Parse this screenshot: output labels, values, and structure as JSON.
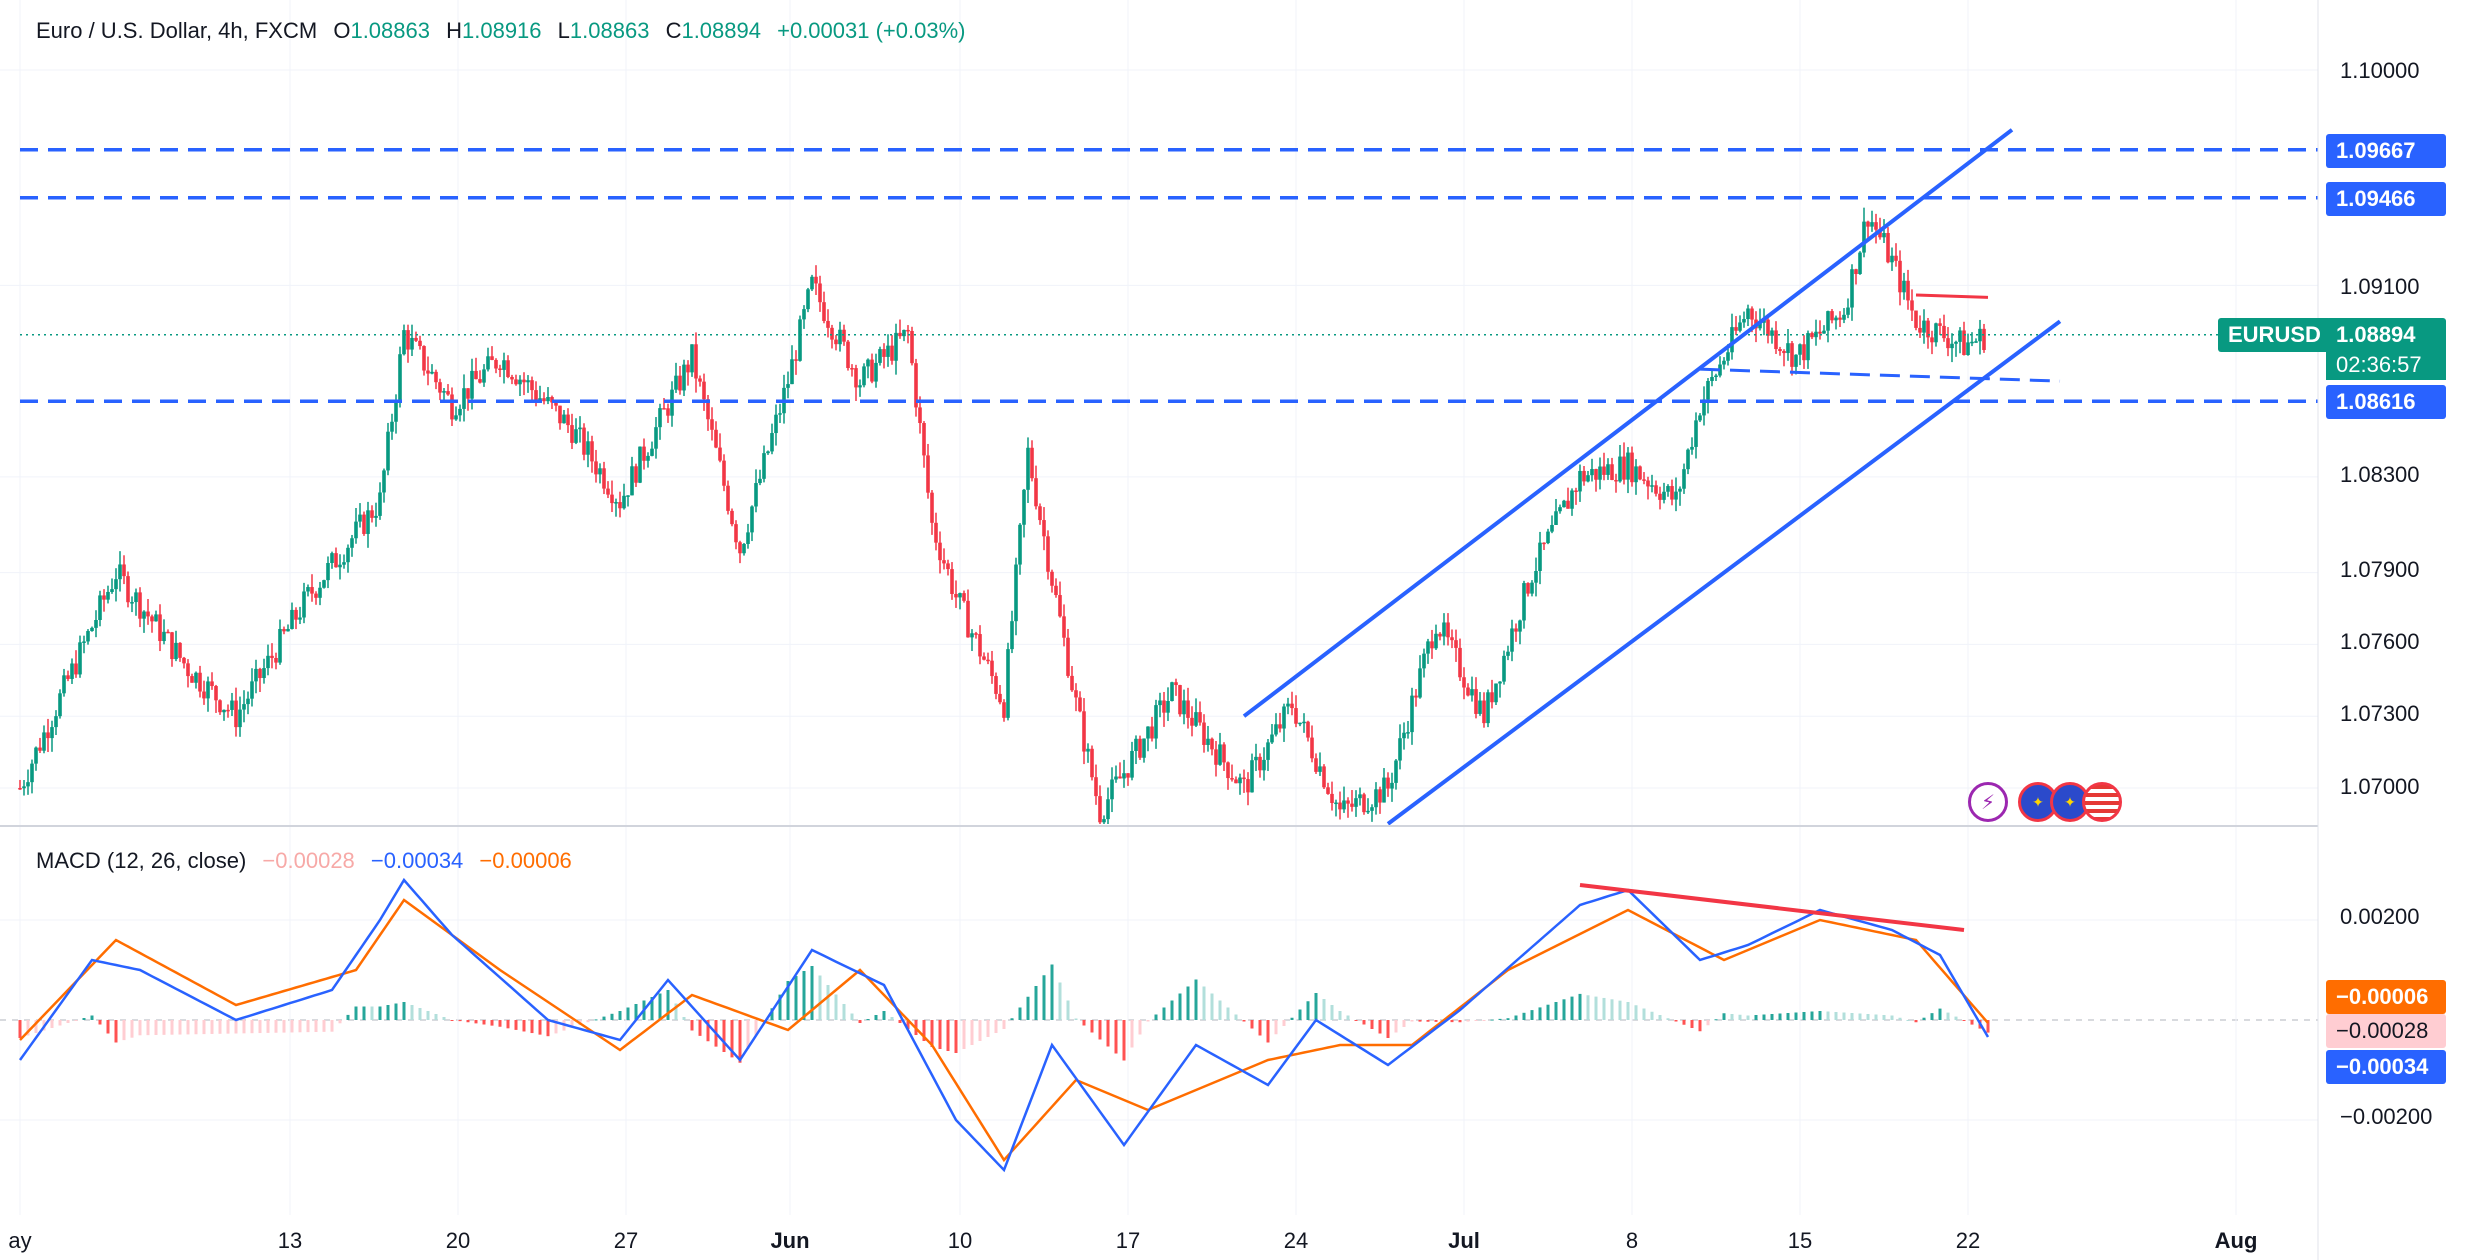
{
  "header": {
    "symbol_title": "Euro / U.S. Dollar, 4h, FXCM",
    "o_label": "O",
    "o_value": "1.08863",
    "h_label": "H",
    "h_value": "1.08916",
    "l_label": "L",
    "l_value": "1.08863",
    "c_label": "C",
    "c_value": "1.08894",
    "change": "+0.00031 (+0.03%)"
  },
  "macd_legend": {
    "title": "MACD (12, 26, close)",
    "hist_value": "−0.00028",
    "macd_value": "−0.00034",
    "signal_value": "−0.00006"
  },
  "price_axis": {
    "ticks": [
      "1.10000",
      "1.09100",
      "1.08300",
      "1.07900",
      "1.07600",
      "1.07300",
      "1.07000"
    ]
  },
  "macd_axis": {
    "ticks": [
      "0.00200",
      "−0.00200"
    ]
  },
  "x_axis": {
    "ticks": [
      "ay",
      "13",
      "20",
      "27",
      "Jun",
      "10",
      "17",
      "24",
      "Jul",
      "8",
      "15",
      "22",
      "Aug"
    ]
  },
  "tags": {
    "level_1": "1.09667",
    "level_2": "1.09466",
    "level_3": "1.08616",
    "symbol": "EURUSD",
    "last_price": "1.08894",
    "countdown": "02:36:57",
    "signal": "−0.00006",
    "hist": "−0.00028",
    "macd": "−0.00034"
  },
  "colors": {
    "up": "#089981",
    "down": "#f23645",
    "level_line": "#2962ff",
    "channel": "#2962ff",
    "resistance": "#f23645",
    "macd_line": "#2962ff",
    "signal_line": "#ff6d00",
    "hist_up_strong": "#26a69a",
    "hist_up_weak": "#b2dfdb",
    "hist_down_strong": "#ff5252",
    "hist_down_weak": "#ffcdd2"
  },
  "icons": [
    "flash-icon",
    "eu-flag-icon",
    "eu-flag-icon",
    "us-flag-icon"
  ],
  "chart_data": [
    {
      "type": "candlestick",
      "title": "Euro / U.S. Dollar, 4h, FXCM",
      "x_ticks": [
        "ay",
        "13",
        "20",
        "27",
        "Jun",
        "10",
        "17",
        "24",
        "Jul",
        "8",
        "15",
        "22",
        "Aug"
      ],
      "price_ticks": [
        1.1,
        1.091,
        1.083,
        1.079,
        1.076,
        1.073,
        1.07
      ],
      "close_path": [
        {
          "day": 0,
          "price": 1.07
        },
        {
          "day": 4,
          "price": 1.079
        },
        {
          "day": 7,
          "price": 1.075
        },
        {
          "day": 9,
          "price": 1.073
        },
        {
          "day": 12,
          "price": 1.078
        },
        {
          "day": 15,
          "price": 1.082
        },
        {
          "day": 16,
          "price": 1.089
        },
        {
          "day": 18,
          "price": 1.086
        },
        {
          "day": 20,
          "price": 1.088
        },
        {
          "day": 23,
          "price": 1.085
        },
        {
          "day": 25,
          "price": 1.082
        },
        {
          "day": 28,
          "price": 1.088
        },
        {
          "day": 30,
          "price": 1.08
        },
        {
          "day": 32,
          "price": 1.087
        },
        {
          "day": 33,
          "price": 1.091
        },
        {
          "day": 35,
          "price": 1.087
        },
        {
          "day": 37,
          "price": 1.089
        },
        {
          "day": 38,
          "price": 1.081
        },
        {
          "day": 39,
          "price": 1.078
        },
        {
          "day": 41,
          "price": 1.0735
        },
        {
          "day": 42,
          "price": 1.084
        },
        {
          "day": 44,
          "price": 1.0735
        },
        {
          "day": 45,
          "price": 1.069
        },
        {
          "day": 48,
          "price": 1.074
        },
        {
          "day": 51,
          "price": 1.07
        },
        {
          "day": 53,
          "price": 1.0735
        },
        {
          "day": 55,
          "price": 1.069
        },
        {
          "day": 57,
          "price": 1.07
        },
        {
          "day": 59,
          "price": 1.077
        },
        {
          "day": 61,
          "price": 1.073
        },
        {
          "day": 63,
          "price": 1.079
        },
        {
          "day": 65,
          "price": 1.083
        },
        {
          "day": 67,
          "price": 1.0835
        },
        {
          "day": 69,
          "price": 1.082
        },
        {
          "day": 70,
          "price": 1.086
        },
        {
          "day": 72,
          "price": 1.09
        },
        {
          "day": 74,
          "price": 1.088
        },
        {
          "day": 76,
          "price": 1.09
        },
        {
          "day": 77,
          "price": 1.094
        },
        {
          "day": 78,
          "price": 1.092
        },
        {
          "day": 79,
          "price": 1.0895
        },
        {
          "day": 81,
          "price": 1.0885
        },
        {
          "day": 82,
          "price": 1.08894
        }
      ],
      "horizontal_levels": [
        1.09667,
        1.09466,
        1.08616
      ],
      "last_price": 1.08894,
      "ascending_channel": {
        "upper_from": {
          "day": 51,
          "price": 1.073
        },
        "upper_to": {
          "day": 83,
          "price": 1.0975
        },
        "lower_from": {
          "day": 57,
          "price": 1.0685
        },
        "lower_to": {
          "day": 85,
          "price": 1.0895
        }
      },
      "resistance_line": {
        "from": {
          "day": 79,
          "price": 1.0906
        },
        "to": {
          "day": 82,
          "price": 1.0905
        }
      },
      "support_dashed": {
        "from": {
          "day": 70,
          "price": 1.0875
        },
        "to": {
          "day": 85,
          "price": 1.087
        }
      }
    },
    {
      "type": "line",
      "title": "MACD (12, 26, close)",
      "y_ticks": [
        0.002,
        -0.002
      ],
      "series": [
        {
          "name": "MACD",
          "points": [
            {
              "day": 0,
              "v": -0.0008
            },
            {
              "day": 3,
              "v": 0.0012
            },
            {
              "day": 5,
              "v": 0.001
            },
            {
              "day": 9,
              "v": 0.0
            },
            {
              "day": 13,
              "v": 0.0006
            },
            {
              "day": 15,
              "v": 0.002
            },
            {
              "day": 16,
              "v": 0.0028
            },
            {
              "day": 18,
              "v": 0.0017
            },
            {
              "day": 22,
              "v": 0.0
            },
            {
              "day": 25,
              "v": -0.0004
            },
            {
              "day": 27,
              "v": 0.0008
            },
            {
              "day": 30,
              "v": -0.0008
            },
            {
              "day": 33,
              "v": 0.0014
            },
            {
              "day": 36,
              "v": 0.0007
            },
            {
              "day": 39,
              "v": -0.002
            },
            {
              "day": 41,
              "v": -0.003
            },
            {
              "day": 43,
              "v": -0.0005
            },
            {
              "day": 46,
              "v": -0.0025
            },
            {
              "day": 49,
              "v": -0.0005
            },
            {
              "day": 52,
              "v": -0.0013
            },
            {
              "day": 54,
              "v": 0.0
            },
            {
              "day": 57,
              "v": -0.0009
            },
            {
              "day": 60,
              "v": 0.0002
            },
            {
              "day": 65,
              "v": 0.0023
            },
            {
              "day": 67,
              "v": 0.0026
            },
            {
              "day": 70,
              "v": 0.0012
            },
            {
              "day": 72,
              "v": 0.0015
            },
            {
              "day": 75,
              "v": 0.0022
            },
            {
              "day": 78,
              "v": 0.0018
            },
            {
              "day": 80,
              "v": 0.0013
            },
            {
              "day": 82,
              "v": -0.00034
            }
          ]
        },
        {
          "name": "Signal",
          "points": [
            {
              "day": 0,
              "v": -0.0004
            },
            {
              "day": 4,
              "v": 0.0016
            },
            {
              "day": 9,
              "v": 0.0003
            },
            {
              "day": 14,
              "v": 0.001
            },
            {
              "day": 16,
              "v": 0.0024
            },
            {
              "day": 20,
              "v": 0.001
            },
            {
              "day": 25,
              "v": -0.0006
            },
            {
              "day": 28,
              "v": 0.0005
            },
            {
              "day": 32,
              "v": -0.0002
            },
            {
              "day": 35,
              "v": 0.001
            },
            {
              "day": 38,
              "v": -0.0005
            },
            {
              "day": 41,
              "v": -0.0028
            },
            {
              "day": 44,
              "v": -0.0012
            },
            {
              "day": 47,
              "v": -0.0018
            },
            {
              "day": 52,
              "v": -0.0008
            },
            {
              "day": 55,
              "v": -0.0005
            },
            {
              "day": 58,
              "v": -0.0005
            },
            {
              "day": 62,
              "v": 0.001
            },
            {
              "day": 67,
              "v": 0.0022
            },
            {
              "day": 71,
              "v": 0.0012
            },
            {
              "day": 75,
              "v": 0.002
            },
            {
              "day": 79,
              "v": 0.0016
            },
            {
              "day": 82,
              "v": -6e-05
            }
          ]
        }
      ],
      "macd_divergence_line": {
        "from": {
          "day": 65,
          "v": 0.0027
        },
        "to": {
          "day": 81,
          "v": 0.0018
        }
      }
    }
  ]
}
